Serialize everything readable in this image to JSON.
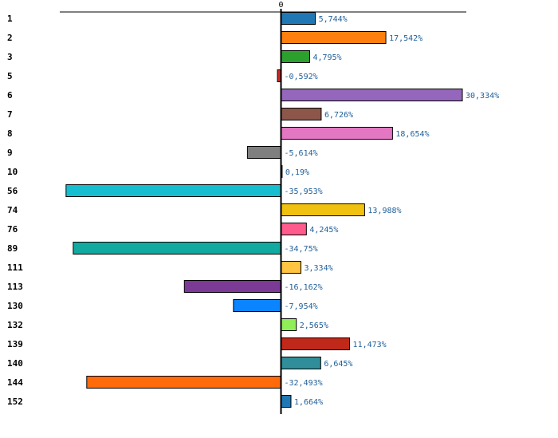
{
  "chart_data": {
    "type": "bar",
    "orientation": "horizontal",
    "title": "",
    "xlabel": "",
    "ylabel": "",
    "xlim": [
      -37.0,
      31.0
    ],
    "zero_tick_label": "0",
    "categories": [
      "1",
      "2",
      "3",
      "5",
      "6",
      "7",
      "8",
      "9",
      "10",
      "56",
      "74",
      "76",
      "89",
      "111",
      "113",
      "130",
      "132",
      "139",
      "140",
      "144",
      "152"
    ],
    "values": [
      5.744,
      17.542,
      4.795,
      -0.592,
      30.334,
      6.726,
      18.654,
      -5.614,
      0.19,
      -35.953,
      13.988,
      4.245,
      -34.75,
      3.334,
      -16.162,
      -7.954,
      2.565,
      11.473,
      6.645,
      -32.493,
      1.664
    ],
    "value_labels": [
      "5,744%",
      "17,542%",
      "4,795%",
      "-0,592%",
      "30,334%",
      "6,726%",
      "18,654%",
      "-5,614%",
      "0,19%",
      "-35,953%",
      "13,988%",
      "4,245%",
      "-34,75%",
      "3,334%",
      "-16,162%",
      "-7,954%",
      "2,565%",
      "11,473%",
      "6,645%",
      "-32,493%",
      "1,664%"
    ],
    "colors": [
      "#1f77b4",
      "#ff7f0e",
      "#2ca02c",
      "#d62728",
      "#9467bd",
      "#8c564b",
      "#e377c2",
      "#7f7f7f",
      "#bcbd22",
      "#17becf",
      "#f0c20f",
      "#ff5c8d",
      "#10aaa0",
      "#ffc441",
      "#7a3a96",
      "#0a84ff",
      "#90ee58",
      "#c0281a",
      "#2f8e99",
      "#ff6a0a",
      "#1f77b4"
    ],
    "label_color": "#1f5f9a"
  }
}
